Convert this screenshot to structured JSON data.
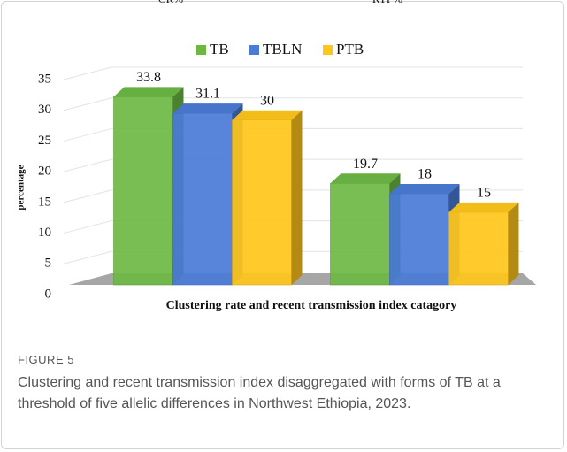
{
  "chart_data": {
    "type": "bar",
    "categories": [
      "CR%",
      "RTI %"
    ],
    "series": [
      {
        "name": "TB",
        "color": "#6cb843",
        "values": [
          33.8,
          19.7
        ]
      },
      {
        "name": "TBLN",
        "color": "#4a7bd6",
        "values": [
          31.1,
          18
        ]
      },
      {
        "name": "PTB",
        "color": "#ffc61a",
        "values": [
          30,
          15
        ]
      }
    ],
    "ylim": [
      0,
      35
    ],
    "yticks": [
      0,
      5,
      10,
      15,
      20,
      25,
      30,
      35
    ],
    "ylabel": "percentage",
    "xlabel": "Clustering  rate and recent transmission index catagory",
    "grid": true,
    "legend": "top"
  },
  "figure": {
    "label": "FIGURE 5",
    "caption": "Clustering and recent transmission index disaggregated with forms of TB at a threshold of five allelic differences in Northwest Ethiopia, 2023."
  }
}
